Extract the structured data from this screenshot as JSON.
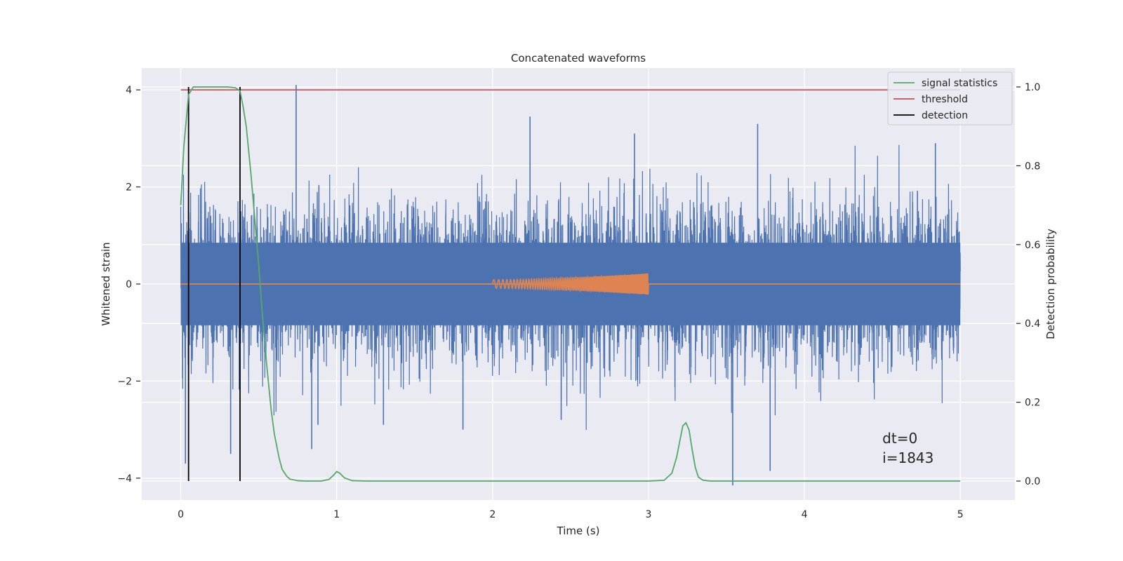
{
  "chart_data": {
    "type": "line",
    "title": "Concatenated waveforms",
    "xlabel": "Time (s)",
    "ylabel": "Whitened strain",
    "y2label": "Detection probability",
    "xlim": [
      -0.25,
      5.35
    ],
    "ylim": [
      -4.45,
      4.45
    ],
    "y2lim": [
      -0.048,
      1.048
    ],
    "xticks": [
      0,
      1,
      2,
      3,
      4,
      5
    ],
    "yticks": [
      -4,
      -2,
      0,
      2,
      4
    ],
    "y2ticks": [
      0.0,
      0.2,
      0.4,
      0.6,
      0.8,
      1.0
    ],
    "ytick_labels": [
      "−4",
      "−2",
      "0",
      "2",
      "4"
    ],
    "y2tick_labels": [
      "0.0",
      "0.2",
      "0.4",
      "0.6",
      "0.8",
      "1.0"
    ],
    "xtick_labels": [
      "0",
      "1",
      "2",
      "3",
      "4",
      "5"
    ],
    "grid": true,
    "legend_position": "top-right",
    "series": [
      {
        "name": "",
        "axis": "left",
        "color": "#4c72b0",
        "description_kind": "noise",
        "x_range": [
          0,
          5
        ],
        "typical_amplitude": 0.8,
        "band_amplitude": 0.85,
        "max": 4.1,
        "min": -4.15,
        "spikes": [
          [
            0.03,
            -3.7
          ],
          [
            0.32,
            -3.5
          ],
          [
            0.74,
            4.1
          ],
          [
            0.84,
            -3.4
          ],
          [
            0.88,
            -2.9
          ],
          [
            1.3,
            -2.9
          ],
          [
            1.81,
            -3.0
          ],
          [
            2.24,
            3.45
          ],
          [
            2.44,
            -2.8
          ],
          [
            2.91,
            3.1
          ],
          [
            3.54,
            -4.15
          ],
          [
            3.7,
            3.3
          ],
          [
            3.78,
            -3.85
          ],
          [
            4.84,
            2.9
          ]
        ]
      },
      {
        "name": "",
        "axis": "left",
        "color": "#dd8452",
        "description_kind": "chirp",
        "x_range": [
          0,
          5
        ],
        "chirp_start": 2.0,
        "chirp_end": 3.0,
        "chirp_amp_start": 0.09,
        "chirp_amp_end": 0.22
      },
      {
        "name": "signal statistics",
        "axis": "right",
        "color": "#55a868",
        "x": [
          0,
          0.02,
          0.05,
          0.08,
          0.1,
          0.15,
          0.2,
          0.25,
          0.3,
          0.35,
          0.38,
          0.4,
          0.42,
          0.45,
          0.48,
          0.5,
          0.52,
          0.55,
          0.58,
          0.6,
          0.63,
          0.65,
          0.68,
          0.7,
          0.75,
          0.8,
          0.9,
          0.95,
          0.98,
          1.0,
          1.02,
          1.05,
          1.1,
          1.2,
          1.5,
          2.0,
          2.5,
          3.0,
          3.1,
          3.15,
          3.18,
          3.2,
          3.22,
          3.24,
          3.26,
          3.28,
          3.3,
          3.32,
          3.35,
          3.4,
          3.5,
          4.0,
          4.5,
          5.0
        ],
        "y": [
          0.7,
          0.85,
          0.98,
          1.0,
          1.0,
          1.0,
          1.0,
          1.0,
          1.0,
          0.998,
          0.99,
          0.95,
          0.9,
          0.78,
          0.64,
          0.55,
          0.44,
          0.3,
          0.18,
          0.12,
          0.06,
          0.03,
          0.012,
          0.005,
          0.001,
          0.0,
          0.0,
          0.004,
          0.015,
          0.024,
          0.02,
          0.008,
          0.001,
          0.0,
          0.0,
          0.0,
          0.0,
          0.0,
          0.002,
          0.02,
          0.06,
          0.1,
          0.14,
          0.148,
          0.13,
          0.08,
          0.035,
          0.01,
          0.002,
          0.0,
          0.0,
          0.0,
          0.0,
          0.0
        ]
      },
      {
        "name": "threshold",
        "axis": "left",
        "color": "#c44e52",
        "x": [
          0,
          5
        ],
        "y": [
          4.0,
          4.0
        ]
      },
      {
        "name": "detection",
        "axis": "right",
        "color": "#000000",
        "vlines": [
          0.05,
          0.38
        ],
        "ymin": 0.0,
        "ymax": 1.0
      }
    ],
    "annotations": [
      "dt=0",
      "i=1843"
    ]
  }
}
